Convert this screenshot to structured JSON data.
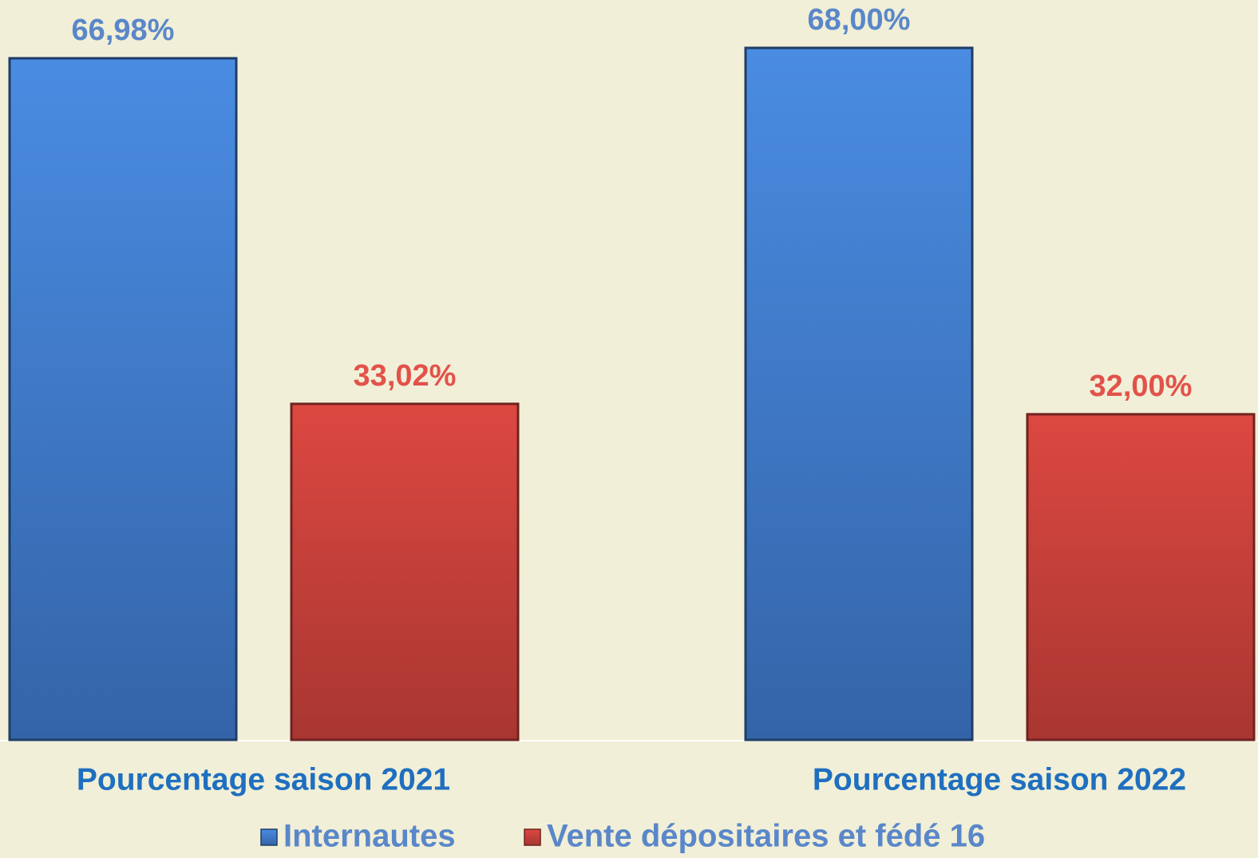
{
  "chart_data": {
    "type": "bar",
    "categories": [
      "Pourcentage saison 2021",
      "Pourcentage saison 2022"
    ],
    "series": [
      {
        "name": "Internautes",
        "color": "#3f7fd4",
        "values": [
          66.98,
          68.0
        ],
        "value_labels": [
          "66,98%",
          "68,00%"
        ]
      },
      {
        "name": "Vente dépositaires et fédé 16",
        "color": "#d2433c",
        "values": [
          33.02,
          32.0
        ],
        "value_labels": [
          "33,02%",
          "32,00%"
        ]
      }
    ]
  }
}
